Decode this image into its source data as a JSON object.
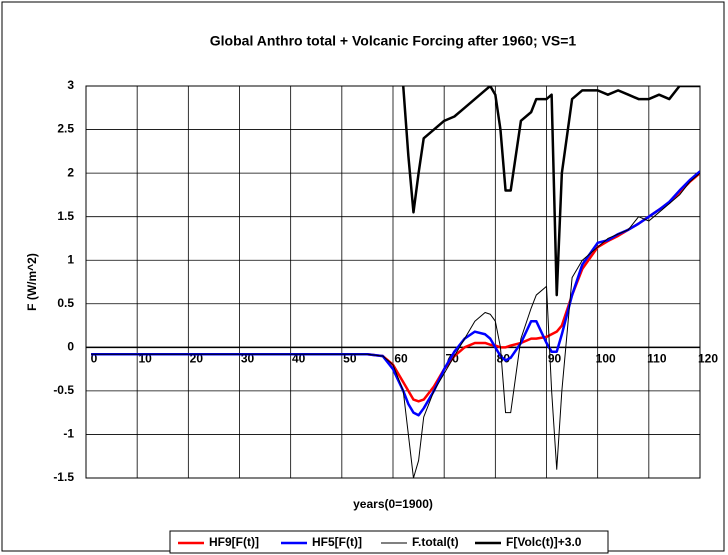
{
  "chart_data": {
    "type": "line",
    "title": "Global Anthro total + Volcanic Forcing after 1960; VS=1",
    "x_label": "years(0=1900)",
    "y_label": "F (W/m^2)",
    "x": [
      1,
      10,
      20,
      30,
      40,
      50,
      55,
      58,
      60,
      62,
      63,
      64,
      65,
      66,
      68,
      70,
      72,
      74,
      76,
      78,
      79,
      80,
      81,
      82,
      83,
      85,
      87,
      88,
      90,
      91,
      92,
      93,
      95,
      97,
      100,
      102,
      104,
      106,
      108,
      110,
      112,
      114,
      116,
      118,
      120
    ],
    "series": [
      {
        "name": "HF9[F(t)]",
        "color": "#ff0000",
        "width": 2.5,
        "values": [
          -0.08,
          -0.08,
          -0.08,
          -0.08,
          -0.08,
          -0.08,
          -0.08,
          -0.1,
          -0.2,
          -0.4,
          -0.5,
          -0.6,
          -0.62,
          -0.6,
          -0.45,
          -0.25,
          -0.1,
          0,
          0.05,
          0.05,
          0.03,
          0.02,
          0,
          0,
          0.02,
          0.05,
          0.1,
          0.1,
          0.12,
          0.15,
          0.18,
          0.25,
          0.6,
          0.9,
          1.15,
          1.22,
          1.28,
          1.35,
          1.42,
          1.5,
          1.58,
          1.66,
          1.78,
          1.9,
          2.0
        ]
      },
      {
        "name": "HF5[F(t)]",
        "color": "#0000ff",
        "width": 2.5,
        "values": [
          -0.08,
          -0.08,
          -0.08,
          -0.08,
          -0.08,
          -0.08,
          -0.08,
          -0.1,
          -0.25,
          -0.5,
          -0.65,
          -0.75,
          -0.78,
          -0.7,
          -0.5,
          -0.25,
          -0.05,
          0.1,
          0.18,
          0.15,
          0.1,
          0,
          -0.1,
          -0.15,
          -0.12,
          0.05,
          0.3,
          0.3,
          0.05,
          -0.05,
          -0.05,
          0.15,
          0.6,
          0.95,
          1.2,
          1.23,
          1.3,
          1.35,
          1.42,
          1.5,
          1.58,
          1.67,
          1.8,
          1.92,
          2.02
        ]
      },
      {
        "name": "F.total(t)",
        "color": "#000000",
        "width": 1,
        "values": [
          -0.08,
          -0.08,
          -0.08,
          -0.08,
          -0.08,
          -0.08,
          -0.08,
          -0.1,
          -0.2,
          -0.5,
          -1.0,
          -1.5,
          -1.3,
          -0.8,
          -0.5,
          -0.3,
          -0.1,
          0.1,
          0.3,
          0.4,
          0.38,
          0.3,
          0,
          -0.75,
          -0.75,
          0.1,
          0.45,
          0.6,
          0.7,
          -0.5,
          -1.4,
          -0.5,
          0.8,
          1.0,
          1.15,
          1.25,
          1.3,
          1.35,
          1.5,
          1.45,
          1.55,
          1.65,
          1.75,
          1.9,
          2.0
        ]
      },
      {
        "name": "F[Volc(t)]+3.0",
        "color": "#000000",
        "width": 2.5,
        "values": [
          null,
          null,
          null,
          null,
          null,
          null,
          null,
          null,
          null,
          3.0,
          2.2,
          1.55,
          2.0,
          2.4,
          2.5,
          2.6,
          2.65,
          2.75,
          2.85,
          2.95,
          3.0,
          2.9,
          2.5,
          1.8,
          1.8,
          2.6,
          2.7,
          2.85,
          2.85,
          2.9,
          0.6,
          2.0,
          2.85,
          2.95,
          2.95,
          2.9,
          2.95,
          2.9,
          2.85,
          2.85,
          2.9,
          2.85,
          3.0,
          3.0,
          3.0
        ]
      }
    ],
    "xlim": [
      0,
      120
    ],
    "ylim": [
      -1.5,
      3
    ],
    "xticks": [
      0,
      10,
      20,
      30,
      40,
      50,
      60,
      70,
      80,
      90,
      100,
      110,
      120
    ],
    "yticks": [
      3,
      2.5,
      2,
      1.5,
      1,
      0.5,
      0,
      -0.5,
      -1,
      -1.5
    ],
    "grid": true,
    "legend": "bottom"
  }
}
